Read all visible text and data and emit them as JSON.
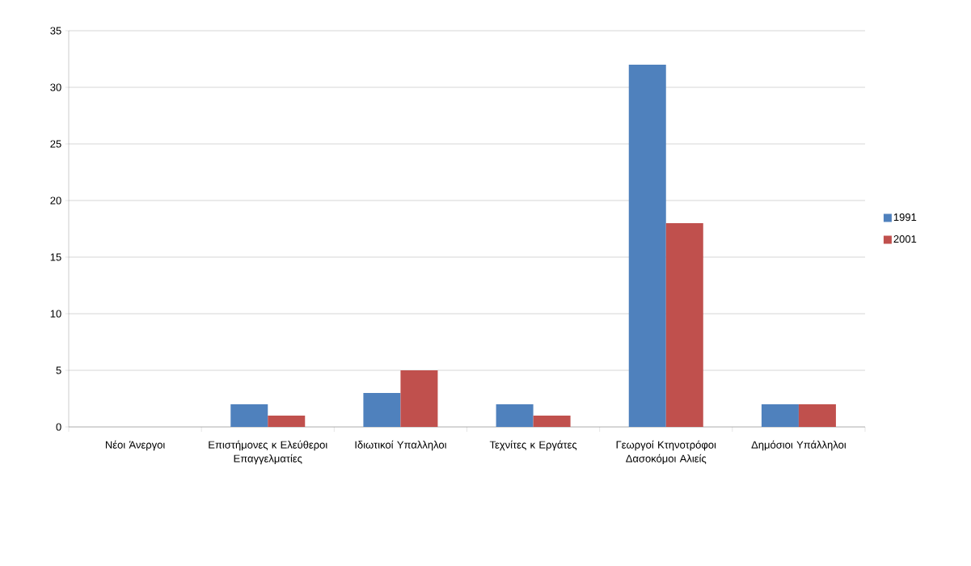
{
  "chart_data": {
    "type": "bar",
    "categories": [
      "Νέοι Άνεργοι",
      "Επιστήμονες κ Ελεύθεροι Επαγγελματίες",
      "Ιδιωτικοί Υπαλληλοι",
      "Τεχνίτες κ Εργάτες",
      "Γεωργοί Κτηνοτρόφοι Δασοκόμοι Αλιείς",
      "Δημόσιοι Υπάλληλοι"
    ],
    "series": [
      {
        "name": "1991",
        "color": "#4f81bd",
        "values": [
          0,
          2,
          3,
          2,
          32,
          2
        ]
      },
      {
        "name": "2001",
        "color": "#c0504d",
        "values": [
          0,
          1,
          5,
          1,
          18,
          2
        ]
      }
    ],
    "ylim": [
      0,
      35
    ],
    "yticks": [
      0,
      5,
      10,
      15,
      20,
      25,
      30,
      35
    ],
    "grid": "y",
    "legend": "right"
  }
}
